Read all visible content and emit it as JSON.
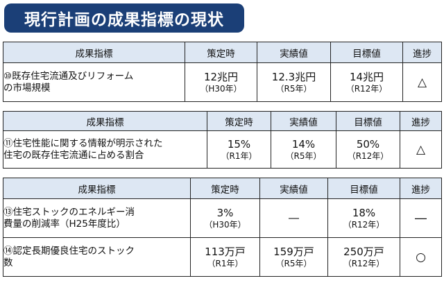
{
  "title": "現行計画の成果指標の現状",
  "headers": {
    "indicator": "成果指標",
    "baseline": "策定時",
    "actual": "実績値",
    "target": "目標値",
    "progress": "進捗"
  },
  "tables": [
    {
      "rows": [
        {
          "indicator_line1": "⑩既存住宅流通及びリフォーム",
          "indicator_line2": "の市場規模",
          "baseline_value": "12兆円",
          "baseline_year": "（H30年）",
          "actual_value": "12.3兆円",
          "actual_year": "（R5年）",
          "target_value": "14兆円",
          "target_year": "（R12年）",
          "progress": "△"
        }
      ]
    },
    {
      "rows": [
        {
          "indicator_line1": "⑪住宅性能に関する情報が明示された",
          "indicator_line2": "住宅の既存住宅流通に占める割合",
          "baseline_value": "15%",
          "baseline_year": "（R1年）",
          "actual_value": "14%",
          "actual_year": "（R5年）",
          "target_value": "50%",
          "target_year": "（R12年）",
          "progress": "△"
        }
      ]
    },
    {
      "rows": [
        {
          "indicator_line1": "⑬住宅ストックのエネルギー消",
          "indicator_line2": "費量の削減率（H25年度比）",
          "baseline_value": "3%",
          "baseline_year": "（H30年）",
          "actual_value": "―",
          "actual_year": "",
          "target_value": "18%",
          "target_year": "（R12年）",
          "progress": "―"
        },
        {
          "indicator_line1": "⑭認定長期優良住宅のストック",
          "indicator_line2": "数",
          "baseline_value": "113万戸",
          "baseline_year": "（R1年）",
          "actual_value": "159万戸",
          "actual_year": "（R5年）",
          "target_value": "250万戸",
          "target_year": "（R12年）",
          "progress": "○"
        }
      ]
    }
  ]
}
